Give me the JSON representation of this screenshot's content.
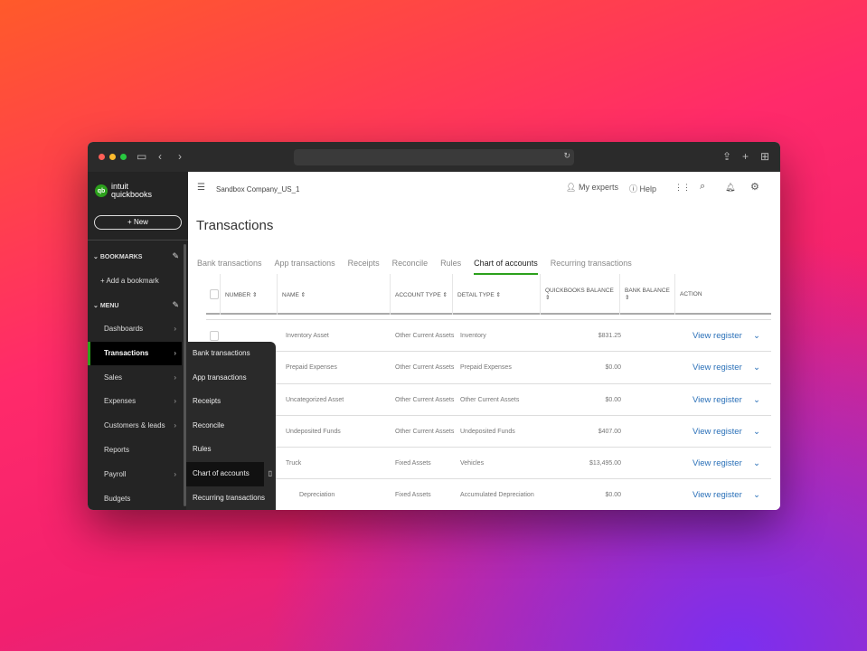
{
  "browser": {
    "traffic_colors": [
      "#ff5f57",
      "#febc2e",
      "#28c840"
    ]
  },
  "sidebar": {
    "brand_top": "intuit",
    "brand_bottom": "quickbooks",
    "new_label": "+ New",
    "bookmarks_label": "BOOKMARKS",
    "add_bookmark": "+ Add a bookmark",
    "menu_label": "MENU",
    "items": [
      {
        "label": "Dashboards",
        "chev": true
      },
      {
        "label": "Transactions",
        "chev": true
      },
      {
        "label": "Sales",
        "chev": true
      },
      {
        "label": "Expenses",
        "chev": true
      },
      {
        "label": "Customers & leads",
        "chev": true
      },
      {
        "label": "Reports",
        "chev": false
      },
      {
        "label": "Payroll",
        "chev": true
      },
      {
        "label": "Budgets",
        "chev": false
      }
    ]
  },
  "flyout": [
    "Bank transactions",
    "App transactions",
    "Receipts",
    "Reconcile",
    "Rules",
    "Chart of accounts",
    "Recurring transactions"
  ],
  "header": {
    "company": "Sandbox Company_US_1",
    "my_experts": "My experts",
    "help": "Help"
  },
  "page_title": "Transactions",
  "tabs": [
    "Bank transactions",
    "App transactions",
    "Receipts",
    "Reconcile",
    "Rules",
    "Chart of accounts",
    "Recurring transactions"
  ],
  "active_tab": "Chart of accounts",
  "table": {
    "columns": [
      "NUMBER",
      "NAME",
      "ACCOUNT TYPE",
      "DETAIL TYPE",
      "QUICKBOOKS BALANCE",
      "BANK BALANCE",
      "ACTION"
    ],
    "rows": [
      {
        "name": "Inventory Asset",
        "type": "Other Current Assets",
        "detail": "Inventory",
        "balance": "$831.25",
        "action": "View register"
      },
      {
        "name": "Prepaid Expenses",
        "type": "Other Current Assets",
        "detail": "Prepaid Expenses",
        "balance": "$0.00",
        "action": "View register"
      },
      {
        "name": "Uncategorized Asset",
        "type": "Other Current Assets",
        "detail": "Other Current Assets",
        "balance": "$0.00",
        "action": "View register"
      },
      {
        "name": "Undeposited Funds",
        "type": "Other Current Assets",
        "detail": "Undeposited Funds",
        "balance": "$407.00",
        "action": "View register"
      },
      {
        "name": "Truck",
        "type": "Fixed Assets",
        "detail": "Vehicles",
        "balance": "$13,495.00",
        "action": "View register"
      },
      {
        "name": "Depreciation",
        "type": "Fixed Assets",
        "detail": "Accumulated Depreciation",
        "balance": "$0.00",
        "action": "View register",
        "indent": true
      }
    ]
  },
  "colors": {
    "accent": "#2ca01c",
    "link": "#2a70b8"
  }
}
